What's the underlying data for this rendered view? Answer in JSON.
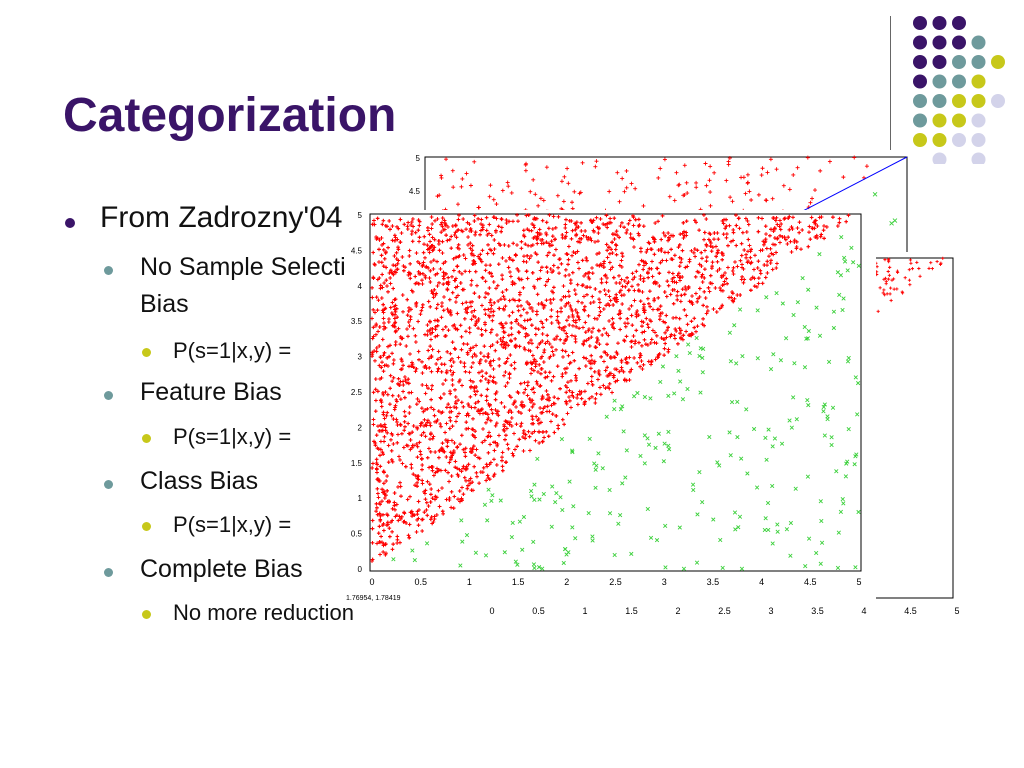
{
  "slide": {
    "title": "Categorization",
    "bullets": [
      {
        "level": 1,
        "text": "From Zadrozny'04"
      },
      {
        "level": 2,
        "text": "No Sample Selection"
      },
      {
        "level": 2,
        "text": "Bias"
      },
      {
        "level": 3,
        "text": "P(s=1|x,y) ="
      },
      {
        "level": 2,
        "text": "Feature Bias"
      },
      {
        "level": 3,
        "text": "P(s=1|x,y) ="
      },
      {
        "level": 2,
        "text": "Class Bias"
      },
      {
        "level": 3,
        "text": "P(s=1|x,y) ="
      },
      {
        "level": 2,
        "text": "Complete Bias"
      },
      {
        "level": 3,
        "text": "No more reduction"
      }
    ],
    "colors": {
      "title": "#3a1468",
      "purple": "#3a1468",
      "teal": "#6e9a9c",
      "olive": "#c7c81a",
      "lavender": "#d3d3ea",
      "red_points": "#ff0000",
      "green_points": "#3ad03a",
      "blue_line": "#0000ff"
    }
  },
  "chart_data": [
    {
      "type": "scatter",
      "description": "back plot, partially hidden",
      "x_ticks": [],
      "y_ticks": [
        "5",
        "4.5"
      ],
      "xlim": [
        0,
        5
      ],
      "ylim": [
        0,
        5
      ],
      "series": [
        {
          "marker": "+",
          "color": "#ff0000",
          "region": "y > x"
        },
        {
          "marker": "line",
          "color": "#0000ff",
          "points": [
            [
              0,
              0
            ],
            [
              5,
              5
            ]
          ]
        }
      ]
    },
    {
      "type": "scatter",
      "description": "right plot, partially hidden",
      "x_ticks": [
        "0",
        "0.5",
        "1",
        "1.5",
        "2",
        "2.5",
        "3",
        "3.5",
        "4",
        "4.5",
        "5"
      ],
      "y_ticks": [],
      "xlim": [
        0,
        5
      ],
      "ylim": [
        0,
        5
      ],
      "series": [
        {
          "marker": "+",
          "color": "#ff0000",
          "region": "y > x"
        }
      ]
    },
    {
      "type": "scatter",
      "description": "front plot",
      "x_ticks": [
        "0",
        "0.5",
        "1",
        "1.5",
        "2",
        "2.5",
        "3",
        "3.5",
        "4",
        "4.5",
        "5"
      ],
      "y_ticks": [
        "0",
        "0.5",
        "1",
        "1.5",
        "2",
        "2.5",
        "3",
        "3.5",
        "4",
        "4.5",
        "5"
      ],
      "xlim": [
        0,
        5
      ],
      "ylim": [
        0,
        5
      ],
      "series": [
        {
          "marker": "+",
          "color": "#ff0000",
          "region": "y > x",
          "density": "dense"
        },
        {
          "marker": "x",
          "color": "#3ad03a",
          "region": "y < x",
          "density": "sparse"
        }
      ]
    }
  ],
  "footer_readout": "1.76954, 1.78419"
}
